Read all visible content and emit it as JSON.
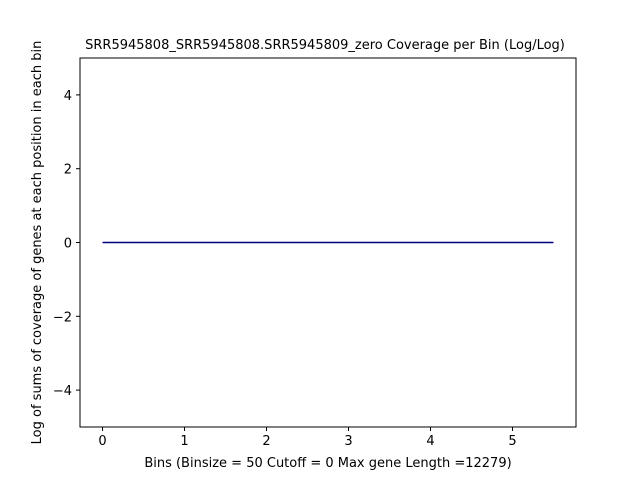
{
  "chart_data": {
    "type": "line",
    "title": "SRR5945808_SRR5945808.SRR5945809_zero Coverage per Bin (Log/Log)",
    "xlabel": "Bins  (Binsize = 50 Cutoff = 0 Max gene Length =12279)",
    "ylabel": "Log of sums of coverage of genes at each position in each bin",
    "xlim": [
      -0.275,
      5.775
    ],
    "ylim": [
      -5,
      5
    ],
    "xticks": [
      0,
      1,
      2,
      3,
      4,
      5
    ],
    "xtick_labels": [
      "0",
      "1",
      "2",
      "3",
      "4",
      "5"
    ],
    "yticks": [
      4,
      2,
      0,
      -2,
      -4
    ],
    "ytick_labels": [
      "4",
      "2",
      "0",
      "−2",
      "−4"
    ],
    "grid": false,
    "series": [
      {
        "color": "#000080",
        "x": [
          0,
          5.5
        ],
        "y": [
          0,
          0
        ]
      }
    ]
  }
}
